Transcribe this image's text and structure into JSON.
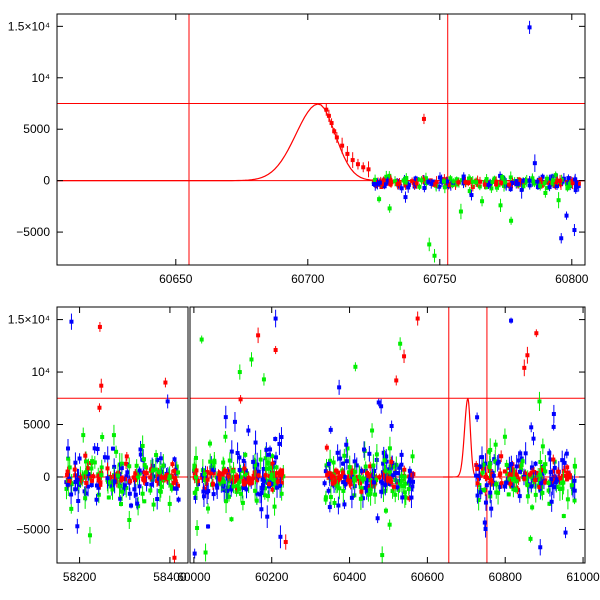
{
  "chart_data": [
    {
      "type": "scatter",
      "xlim": [
        60605,
        60805
      ],
      "ylim": [
        -8200,
        16200
      ],
      "x_ticks": [
        60650,
        60700,
        60750,
        60800
      ],
      "x_tick_labels": [
        "60650",
        "60700",
        "60750",
        "60800"
      ],
      "y_ticks": [
        -5000,
        0,
        5000,
        10000,
        15000
      ],
      "y_tick_labels": [
        "−5000",
        "0",
        "5000",
        "10⁴",
        "1.5×10⁴"
      ],
      "reference_lines": {
        "vertical": [
          60655,
          60753
        ],
        "horizontal": [
          0,
          7500
        ]
      },
      "model_curve": {
        "peak_x": 60704,
        "peak_y": 7450,
        "width_rise": 12,
        "width_fall": 9
      },
      "series": [
        {
          "color": "#ff0000",
          "values": [
            [
              60707,
              6900
            ],
            [
              60708,
              6300
            ],
            [
              60709,
              5600
            ],
            [
              60710,
              4800
            ],
            [
              60711,
              4200
            ],
            [
              60713,
              3400
            ],
            [
              60715,
              2600
            ],
            [
              60717,
              2000
            ],
            [
              60719,
              1600
            ],
            [
              60721,
              1300
            ],
            [
              60723,
              1100
            ],
            [
              60744,
              6000
            ]
          ]
        },
        {
          "color": "#00ee00",
          "values": [
            [
              60727,
              -1800
            ],
            [
              60731,
              -2700
            ],
            [
              60746,
              -6200
            ],
            [
              60748,
              -7300
            ],
            [
              60758,
              -3000
            ],
            [
              60766,
              -2000
            ],
            [
              60773,
              -2400
            ],
            [
              60777,
              -3900
            ],
            [
              60790,
              -1200
            ],
            [
              60795,
              -1900
            ]
          ]
        },
        {
          "color": "#0000ff",
          "values": [
            [
              60784,
              14900
            ],
            [
              60737,
              -1600
            ],
            [
              60762,
              -1400
            ],
            [
              60781,
              -900
            ],
            [
              60796,
              -5600
            ],
            [
              60798,
              -3400
            ],
            [
              60801,
              -4800
            ],
            [
              60786,
              1700
            ]
          ]
        }
      ],
      "dense_band": {
        "x_from": 60725,
        "x_to": 60803,
        "y_center": -200,
        "y_spread": 600
      }
    },
    {
      "type": "scatter",
      "segments": [
        {
          "xlim": [
            58150,
            58440
          ],
          "x_ticks": [
            58200,
            58400
          ],
          "x_tick_labels": [
            "58200",
            "58400"
          ]
        },
        {
          "xlim": [
            59990,
            61005
          ],
          "x_ticks": [
            60000,
            60200,
            60400,
            60600,
            60800,
            61000
          ],
          "x_tick_labels": [
            "60000",
            "60200",
            "60400",
            "60600",
            "60800",
            "61000"
          ]
        }
      ],
      "ylim": [
        -8200,
        16200
      ],
      "y_ticks": [
        -5000,
        0,
        5000,
        10000,
        15000
      ],
      "y_tick_labels": [
        "−5000",
        "0",
        "5000",
        "10⁴",
        "1.5×10⁴"
      ],
      "reference_lines": {
        "vertical": [
          60655,
          60753
        ],
        "horizontal": [
          0,
          7500
        ]
      },
      "model_curve": {
        "peak_x": 60704,
        "peak_y": 7450,
        "width_rise": 12,
        "width_fall": 9
      },
      "clusters": [
        {
          "x_from": 58170,
          "x_to": 58420,
          "spread": 3000
        },
        {
          "x_from": 60000,
          "x_to": 60230,
          "spread": 3200
        },
        {
          "x_from": 60335,
          "x_to": 60565,
          "spread": 3800
        },
        {
          "x_from": 60725,
          "x_to": 60980,
          "spread": 3200
        }
      ],
      "outliers": [
        {
          "color": "#ff0000",
          "values": [
            [
              58245,
              14300
            ],
            [
              58248,
              8700
            ],
            [
              58244,
              6600
            ],
            [
              58390,
              9000
            ],
            [
              60120,
              7400
            ],
            [
              60165,
              13500
            ],
            [
              60210,
              12100
            ],
            [
              60540,
              11500
            ],
            [
              60575,
              15100
            ],
            [
              60857,
              11600
            ],
            [
              60849,
              10400
            ],
            [
              60880,
              13700
            ],
            [
              60520,
              9200
            ],
            [
              60236,
              -6200
            ],
            [
              58410,
              -7700
            ]
          ]
        },
        {
          "color": "#00ee00",
          "values": [
            [
              60020,
              13100
            ],
            [
              60118,
              10000
            ],
            [
              60148,
              11200
            ],
            [
              60180,
              9300
            ],
            [
              60415,
              10500
            ],
            [
              60530,
              12700
            ],
            [
              60888,
              7200
            ],
            [
              58310,
              -4100
            ],
            [
              60030,
              -7200
            ],
            [
              60865,
              -5900
            ]
          ]
        },
        {
          "color": "#0000ff",
          "values": [
            [
              58182,
              14800
            ],
            [
              60210,
              15100
            ],
            [
              60815,
              14900
            ],
            [
              58395,
              7200
            ],
            [
              60475,
              7100
            ],
            [
              60925,
              6000
            ],
            [
              60002,
              -7300
            ],
            [
              60955,
              -5300
            ],
            [
              58195,
              -4700
            ],
            [
              60890,
              -6700
            ]
          ]
        }
      ]
    }
  ]
}
